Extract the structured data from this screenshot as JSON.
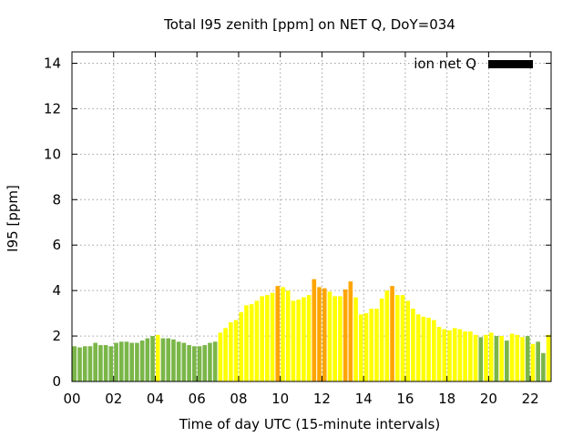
{
  "chart_data": {
    "type": "bar",
    "title": "Total I95 zenith [ppm] on NET Q, DoY=034",
    "xlabel": "Time of day UTC (15-minute intervals)",
    "ylabel": "I95 [ppm]",
    "xlim": [
      0,
      23
    ],
    "ylim": [
      0,
      14.5
    ],
    "x_ticks": [
      "00",
      "02",
      "04",
      "06",
      "08",
      "10",
      "12",
      "14",
      "16",
      "18",
      "20",
      "22"
    ],
    "y_ticks": [
      "0",
      "2",
      "4",
      "6",
      "8",
      "10",
      "12",
      "14"
    ],
    "grid": true,
    "legend": {
      "label": "ion net Q",
      "position": "top-right",
      "color": "#000000"
    },
    "colors": {
      "green": "#7ab648",
      "yellow": "#ffff00",
      "orange": "#ffa500"
    },
    "series": [
      {
        "values": [
          1.55,
          1.5,
          1.55,
          1.55,
          1.7,
          1.6,
          1.6,
          1.55,
          1.7,
          1.75,
          1.75,
          1.7,
          1.7,
          1.8,
          1.9,
          2.0,
          2.05,
          1.9,
          1.9,
          1.85,
          1.75,
          1.7,
          1.6,
          1.55,
          1.55,
          1.6,
          1.7,
          1.75,
          2.15,
          2.35,
          2.6,
          2.7,
          3.05,
          3.35,
          3.4,
          3.55,
          3.75,
          3.8,
          3.9,
          4.2,
          4.15,
          4.0,
          3.55,
          3.6,
          3.7,
          3.8,
          4.5,
          4.15,
          4.1,
          3.95,
          3.75,
          3.75,
          4.05,
          4.4,
          3.7,
          2.95,
          3.0,
          3.2,
          3.2,
          3.65,
          4.0,
          4.2,
          3.8,
          3.8,
          3.55,
          3.2,
          2.95,
          2.85,
          2.8,
          2.7,
          2.4,
          2.3,
          2.25,
          2.35,
          2.3,
          2.2,
          2.2,
          2.05,
          1.95,
          2.05,
          2.15,
          2.0,
          2.0,
          1.8,
          2.1,
          2.05,
          1.95,
          2.0,
          1.65,
          1.75,
          1.25,
          2.05
        ],
        "colors": [
          "green",
          "green",
          "green",
          "green",
          "green",
          "green",
          "green",
          "green",
          "green",
          "green",
          "green",
          "green",
          "green",
          "green",
          "green",
          "green",
          "yellow",
          "green",
          "green",
          "green",
          "green",
          "green",
          "green",
          "green",
          "green",
          "green",
          "green",
          "green",
          "yellow",
          "yellow",
          "yellow",
          "yellow",
          "yellow",
          "yellow",
          "yellow",
          "yellow",
          "yellow",
          "yellow",
          "yellow",
          "orange",
          "yellow",
          "yellow",
          "yellow",
          "yellow",
          "yellow",
          "yellow",
          "orange",
          "orange",
          "orange",
          "yellow",
          "yellow",
          "yellow",
          "orange",
          "orange",
          "yellow",
          "yellow",
          "yellow",
          "yellow",
          "yellow",
          "yellow",
          "yellow",
          "orange",
          "yellow",
          "yellow",
          "yellow",
          "yellow",
          "yellow",
          "yellow",
          "yellow",
          "yellow",
          "yellow",
          "yellow",
          "yellow",
          "yellow",
          "yellow",
          "yellow",
          "yellow",
          "yellow",
          "green",
          "yellow",
          "yellow",
          "green",
          "yellow",
          "green",
          "yellow",
          "yellow",
          "yellow",
          "green",
          "yellow",
          "green",
          "green",
          "yellow"
        ]
      }
    ]
  }
}
